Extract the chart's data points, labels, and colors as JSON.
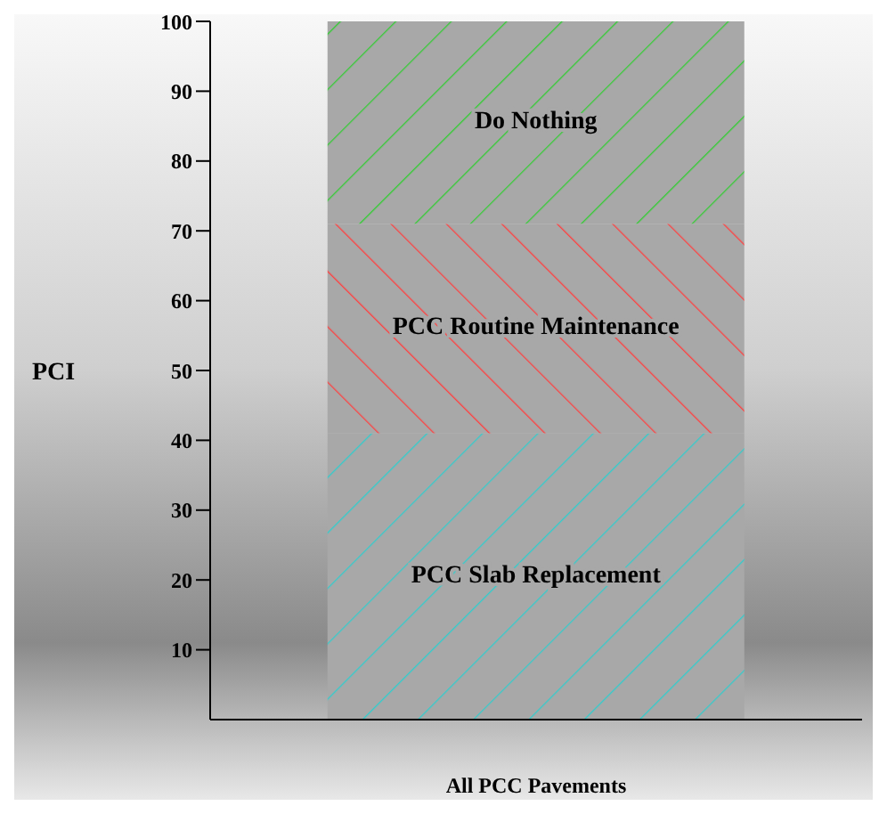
{
  "chart_data": {
    "type": "bar",
    "stacked": true,
    "categories": [
      null
    ],
    "xlabel": "All PCC Pavements",
    "ylabel": "PCI",
    "ylim": [
      0,
      100
    ],
    "yticks": [
      10,
      20,
      30,
      40,
      50,
      60,
      70,
      80,
      90,
      100
    ],
    "legend": false,
    "grid": false,
    "series": [
      {
        "name": "PCC Slab Replacement",
        "color": "#33cccc",
        "values": [
          41
        ]
      },
      {
        "name": "PCC Routine Maintenance",
        "color": "#ff4040",
        "values": [
          30
        ]
      },
      {
        "name": "Do Nothing",
        "color": "#33cc33",
        "values": [
          29
        ]
      }
    ]
  }
}
